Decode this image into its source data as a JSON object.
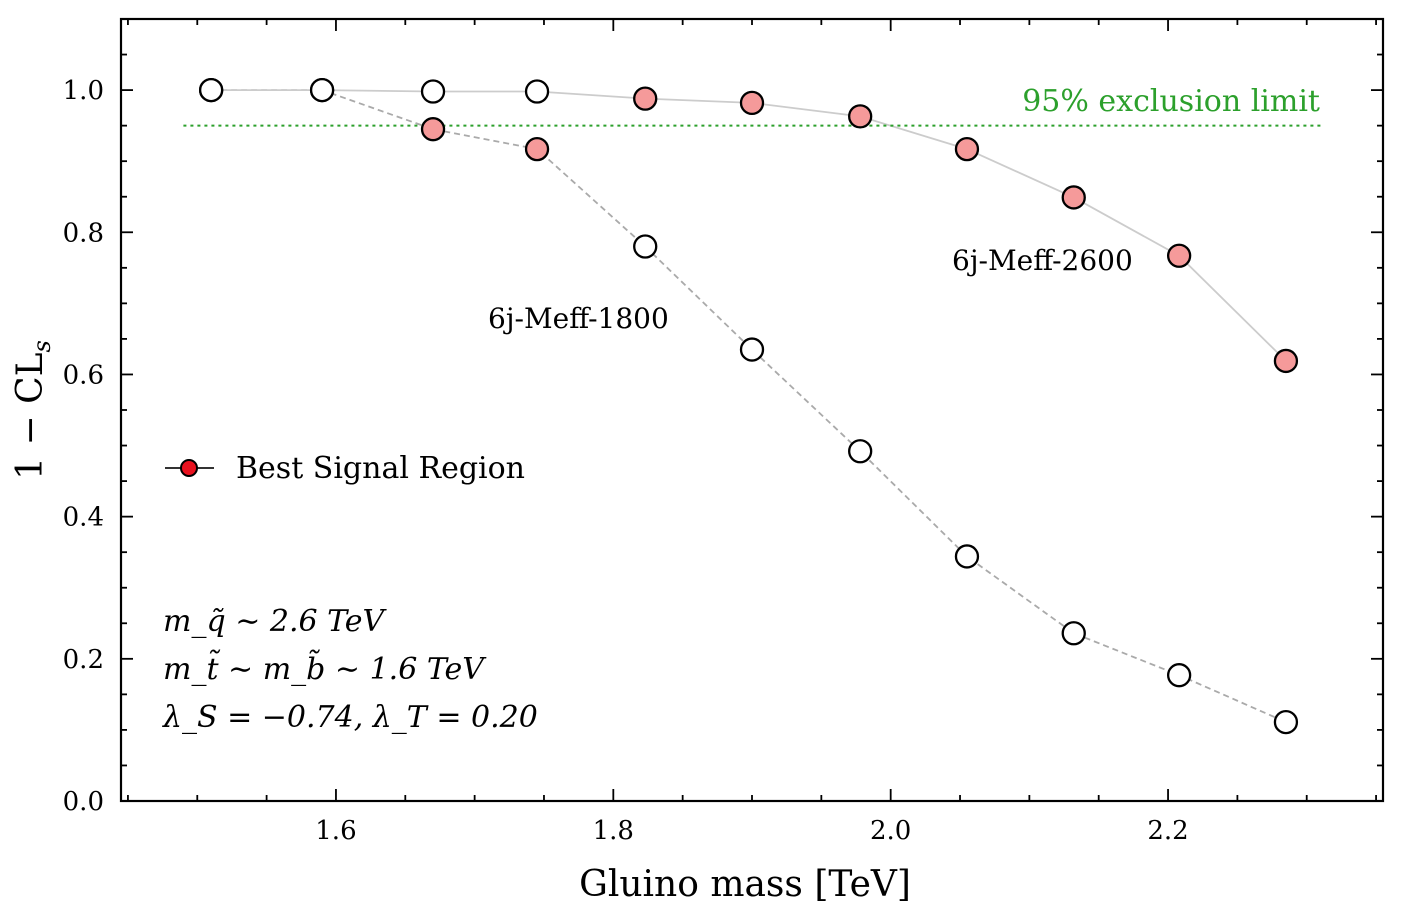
{
  "chart_data": {
    "type": "scatter",
    "xlabel": "Gluino mass [TeV]",
    "ylabel": "1 − CL_s",
    "ylabel_main": "1 − CL",
    "ylabel_sub": "s",
    "xlim": [
      1.445,
      2.355
    ],
    "ylim": [
      0.0,
      1.1
    ],
    "xticks": [
      1.6,
      1.8,
      2.0,
      2.2
    ],
    "xtick_labels": [
      "1.6",
      "1.8",
      "2.0",
      "2.2"
    ],
    "yticks": [
      0.0,
      0.2,
      0.4,
      0.6,
      0.8,
      1.0
    ],
    "ytick_labels": [
      "0.0",
      "0.2",
      "0.4",
      "0.6",
      "0.8",
      "1.0"
    ],
    "series": [
      {
        "name": "6j-Meff-1800",
        "x": [
          1.51,
          1.59,
          1.67,
          1.745,
          1.823,
          1.9,
          1.978,
          2.055,
          2.132,
          2.208,
          2.285
        ],
        "y": [
          1.0,
          1.0,
          0.945,
          0.917,
          0.78,
          0.635,
          0.492,
          0.344,
          0.236,
          0.177,
          0.111
        ],
        "best": [
          true,
          true,
          true,
          true,
          false,
          false,
          false,
          false,
          false,
          false,
          false
        ]
      },
      {
        "name": "6j-Meff-2600",
        "x": [
          1.51,
          1.59,
          1.67,
          1.745,
          1.823,
          1.9,
          1.978,
          2.055,
          2.132,
          2.208,
          2.285
        ],
        "y": [
          1.0,
          1.0,
          0.998,
          0.998,
          0.988,
          0.982,
          0.963,
          0.917,
          0.849,
          0.767,
          0.619
        ],
        "best": [
          false,
          false,
          false,
          false,
          true,
          true,
          true,
          true,
          true,
          true,
          true
        ]
      }
    ],
    "reference_line": {
      "y": 0.95,
      "label": "95% exclusion limit",
      "color": "#2ca02c"
    },
    "annotations": [
      {
        "text": "6j-Meff-1800",
        "series": "6j-Meff-1800"
      },
      {
        "text": "6j-Meff-2600",
        "series": "6j-Meff-2600"
      }
    ],
    "legend": {
      "entries": [
        "Best Signal Region"
      ],
      "placement": "center-left"
    },
    "colors": {
      "best_fill": "#f59a9a",
      "legend_marker": "#e8121f",
      "line_1800": "#aaaaaa",
      "line_2600": "#cccccc",
      "limit": "#2ca02c"
    },
    "parameters": {
      "squark_mass": "m_q̃ ∼ 2.6 TeV",
      "stop_sbottom_mass": "m_t̃ ∼ m_b̃ ∼ 1.6 TeV",
      "couplings": "λ_S = −0.74, λ_T = 0.20"
    }
  }
}
